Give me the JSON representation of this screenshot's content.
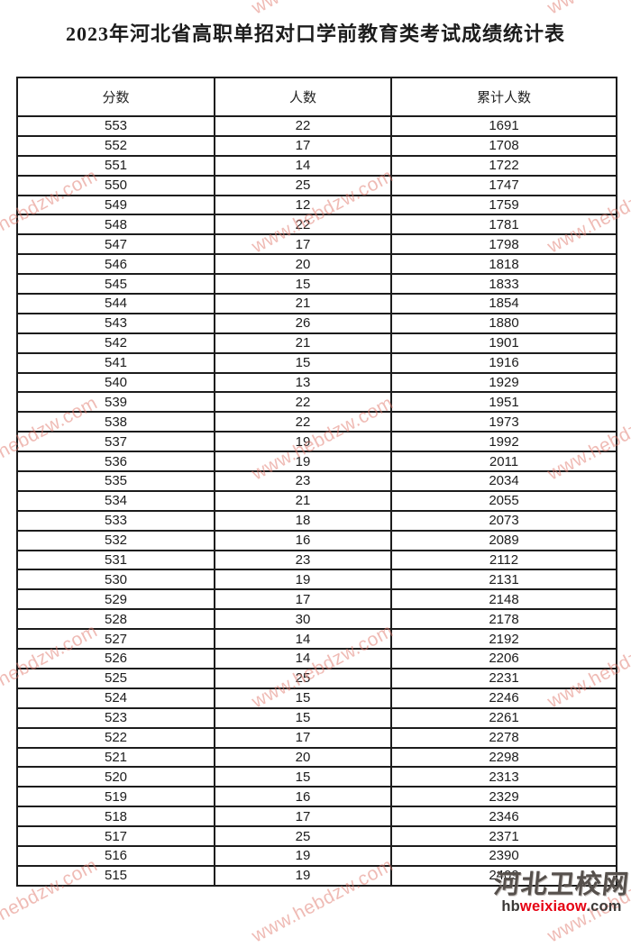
{
  "page": {
    "title": "2023年河北省高职单招对口学前教育类考试成绩统计表"
  },
  "table": {
    "headers": [
      "分数",
      "人数",
      "累计人数"
    ],
    "rows": [
      [
        553,
        22,
        1691
      ],
      [
        552,
        17,
        1708
      ],
      [
        551,
        14,
        1722
      ],
      [
        550,
        25,
        1747
      ],
      [
        549,
        12,
        1759
      ],
      [
        548,
        22,
        1781
      ],
      [
        547,
        17,
        1798
      ],
      [
        546,
        20,
        1818
      ],
      [
        545,
        15,
        1833
      ],
      [
        544,
        21,
        1854
      ],
      [
        543,
        26,
        1880
      ],
      [
        542,
        21,
        1901
      ],
      [
        541,
        15,
        1916
      ],
      [
        540,
        13,
        1929
      ],
      [
        539,
        22,
        1951
      ],
      [
        538,
        22,
        1973
      ],
      [
        537,
        19,
        1992
      ],
      [
        536,
        19,
        2011
      ],
      [
        535,
        23,
        2034
      ],
      [
        534,
        21,
        2055
      ],
      [
        533,
        18,
        2073
      ],
      [
        532,
        16,
        2089
      ],
      [
        531,
        23,
        2112
      ],
      [
        530,
        19,
        2131
      ],
      [
        529,
        17,
        2148
      ],
      [
        528,
        30,
        2178
      ],
      [
        527,
        14,
        2192
      ],
      [
        526,
        14,
        2206
      ],
      [
        525,
        25,
        2231
      ],
      [
        524,
        15,
        2246
      ],
      [
        523,
        15,
        2261
      ],
      [
        522,
        17,
        2278
      ],
      [
        521,
        20,
        2298
      ],
      [
        520,
        15,
        2313
      ],
      [
        519,
        16,
        2329
      ],
      [
        518,
        17,
        2346
      ],
      [
        517,
        25,
        2371
      ],
      [
        516,
        19,
        2390
      ],
      [
        515,
        19,
        2409
      ]
    ]
  },
  "watermark": {
    "text": "www.hebdzw.com"
  },
  "logo": {
    "site_name": "河北卫校网",
    "url_prefix": "hb",
    "url_highlight": "weixiaow",
    "url_suffix": ".com"
  },
  "colors": {
    "watermark_pink": "#e07a6e",
    "logo_red": "#e60012",
    "logo_dark": "#3c3a38",
    "table_border": "#1c1c1c"
  }
}
